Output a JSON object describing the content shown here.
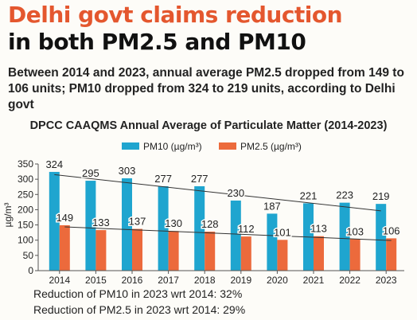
{
  "headline": {
    "line1": "Delhi govt claims reduction",
    "line2": "in both PM2.5 and PM10"
  },
  "summary": "Between 2014 and 2023, annual average PM2.5 dropped from 149 to 106 units; PM10 dropped from 324 to 219 units, according to Delhi govt",
  "notes": {
    "pm10": "Reduction of PM10 in 2023 wrt 2014: 32%",
    "pm25": "Reduction of PM2.5 in 2023 wrt 2014: 29%"
  },
  "colors": {
    "pm10": "#1fa5cf",
    "pm25": "#ec6a3c",
    "headline_accent": "#e4572e"
  },
  "chart_data": {
    "type": "bar",
    "title": "DPCC CAAQMS Annual Average of Particulate Matter (2014-2023)",
    "xlabel": "",
    "ylabel": "µg/m³",
    "ylim": [
      0,
      350
    ],
    "yticks": [
      0,
      50,
      100,
      150,
      200,
      250,
      300,
      350
    ],
    "grid": false,
    "legend_position": "top",
    "categories": [
      "2014",
      "2015",
      "2016",
      "2017",
      "2018",
      "2019",
      "2020",
      "2021",
      "2022",
      "2023"
    ],
    "series": [
      {
        "name": "PM10 (µg/m³)",
        "values": [
          324,
          295,
          303,
          277,
          277,
          230,
          187,
          221,
          223,
          219
        ]
      },
      {
        "name": "PM2.5 (µg/m³)",
        "values": [
          149,
          133,
          137,
          130,
          128,
          112,
          101,
          113,
          103,
          106
        ]
      }
    ]
  }
}
